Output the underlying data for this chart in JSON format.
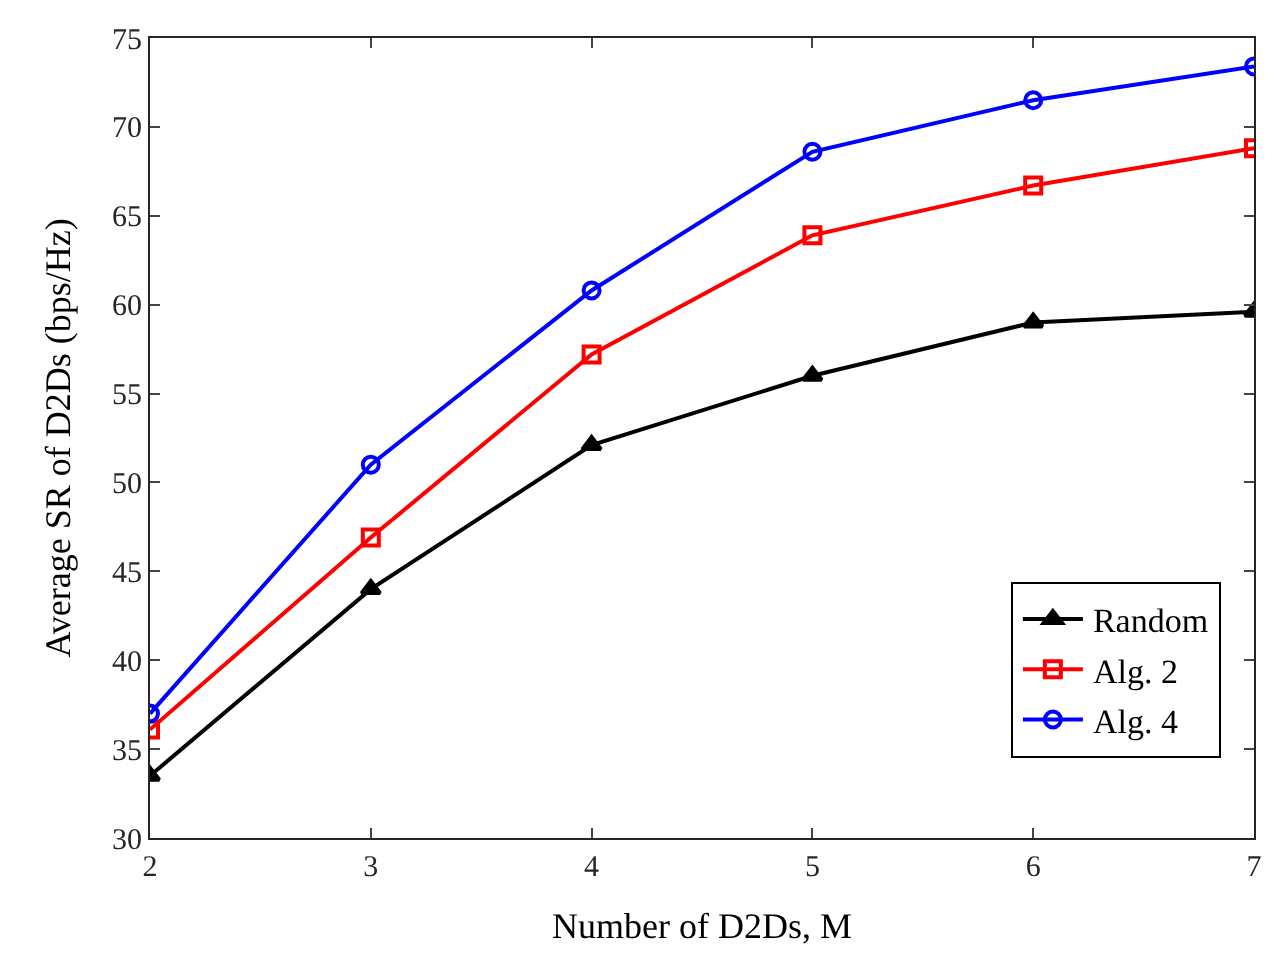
{
  "chart_data": {
    "type": "line",
    "xlabel": "Number of D2Ds, M",
    "ylabel": "Average SR of D2Ds (bps/Hz)",
    "x": [
      2,
      3,
      4,
      5,
      6,
      7
    ],
    "series": [
      {
        "name": "Random",
        "color": "#000000",
        "marker": "triangle",
        "values": [
          33.5,
          44.0,
          52.1,
          56.0,
          59.0,
          59.6
        ]
      },
      {
        "name": "Alg. 2",
        "color": "#ff0000",
        "marker": "square",
        "values": [
          36.1,
          46.9,
          57.2,
          63.9,
          66.7,
          68.8
        ]
      },
      {
        "name": "Alg. 4",
        "color": "#0000ff",
        "marker": "circle",
        "values": [
          37.0,
          51.0,
          60.8,
          68.6,
          71.5,
          73.4
        ]
      }
    ],
    "xlim": [
      2,
      7
    ],
    "xticks": [
      2,
      3,
      4,
      5,
      6,
      7
    ],
    "ylim": [
      30,
      75
    ],
    "yticks": [
      30,
      35,
      40,
      45,
      50,
      55,
      60,
      65,
      70,
      75
    ],
    "legend": "bottom right",
    "line_style": "solid"
  }
}
